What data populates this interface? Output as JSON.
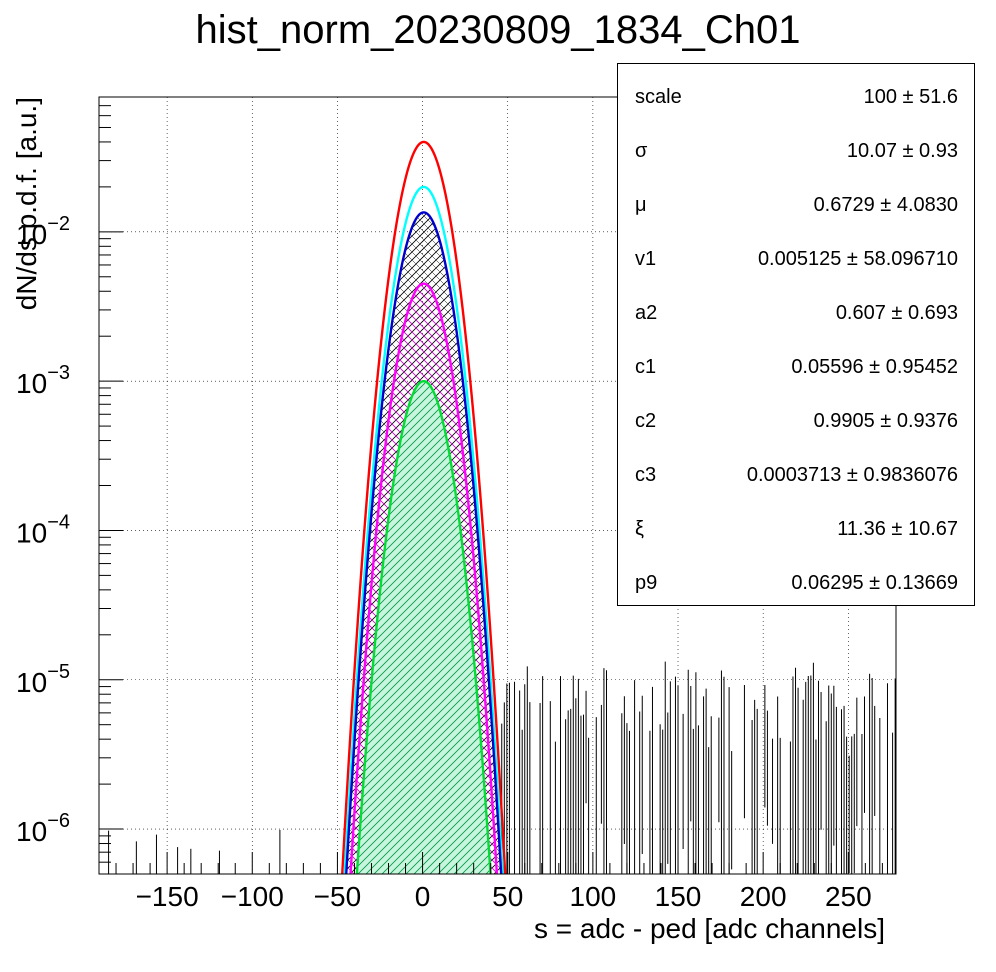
{
  "chart_data": {
    "type": "histogram",
    "title": "hist_norm_20230809_1834_Ch01",
    "xlabel": "s = adc - ped [adc channels]",
    "ylabel": "dN/ds p.d.f. [a.u.]",
    "xlim": [
      -190,
      278
    ],
    "ylim": [
      5e-07,
      0.08
    ],
    "ylog": true,
    "grid": true,
    "x_ticks": [
      -150,
      -100,
      -50,
      0,
      50,
      100,
      150,
      200,
      250
    ],
    "y_ticks": [
      {
        "value": 1e-06,
        "base": "10",
        "exp": "−6"
      },
      {
        "value": 1e-05,
        "base": "10",
        "exp": "−5"
      },
      {
        "value": 0.0001,
        "base": "10",
        "exp": "−4"
      },
      {
        "value": 0.001,
        "base": "10",
        "exp": "−3"
      },
      {
        "value": 0.01,
        "base": "10",
        "exp": "−2"
      }
    ],
    "series": [
      {
        "color": "#ff0000",
        "peak": 0.04,
        "mean": 0.6729,
        "sigma": 10.07,
        "fill": "none"
      },
      {
        "color": "#00ffff",
        "peak": 0.02,
        "mean": 0.6729,
        "sigma": 10.07,
        "fill": "none"
      },
      {
        "color": "#0000cc",
        "peak": 0.0135,
        "mean": 0.6729,
        "sigma": 10.07,
        "fill": "hatch-dark"
      },
      {
        "color": "#ff00ff",
        "peak": 0.0045,
        "mean": 0.6729,
        "sigma": 10.07,
        "fill": "hatch-magenta"
      },
      {
        "color": "#00dd33",
        "peak": 0.001,
        "mean": 0.6729,
        "sigma": 10.07,
        "fill": "hatch-green"
      }
    ],
    "noise_level": 3e-06,
    "stats": [
      {
        "name": "scale",
        "value": "100 ± 51.6"
      },
      {
        "name": "σ",
        "value": "10.07 ± 0.93"
      },
      {
        "name": "μ",
        "value": "0.6729 ± 4.0830"
      },
      {
        "name": "v1",
        "value": "0.005125 ± 58.096710"
      },
      {
        "name": "a2",
        "value": "0.607 ± 0.693"
      },
      {
        "name": "c1",
        "value": "0.05596 ± 0.95452"
      },
      {
        "name": "c2",
        "value": "0.9905 ± 0.9376"
      },
      {
        "name": "c3",
        "value": "0.0003713 ± 0.9836076"
      },
      {
        "name": "ξ",
        "value": "11.36 ± 10.67"
      },
      {
        "name": "p9",
        "value": "0.06295 ± 0.13669"
      }
    ]
  }
}
